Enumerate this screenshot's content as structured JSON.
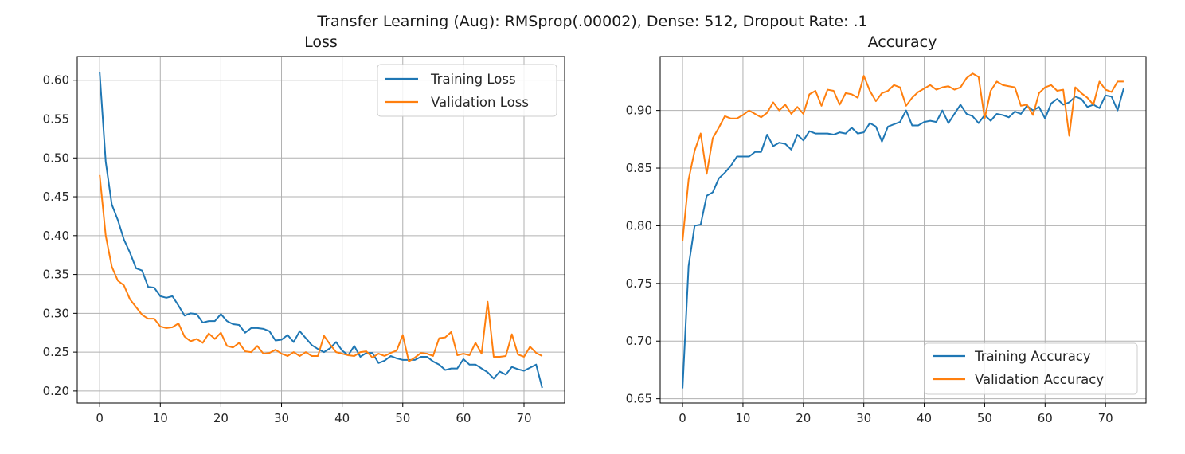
{
  "suptitle": "Transfer Learning (Aug): RMSprop(.00002), Dense: 512, Dropout Rate: .1",
  "colors": {
    "training": "#1f77b4",
    "validation": "#ff7f0e",
    "grid": "#b0b0b0",
    "axes": "#000000"
  },
  "chart_data": [
    {
      "type": "line",
      "title": "Loss",
      "xlabel": "",
      "ylabel": "",
      "xlim": [
        -3.7,
        76.7
      ],
      "ylim": [
        0.1845,
        0.6305
      ],
      "xticks": [
        0,
        10,
        20,
        30,
        40,
        50,
        60,
        70
      ],
      "yticks": [
        0.2,
        0.25,
        0.3,
        0.35,
        0.4,
        0.45,
        0.5,
        0.55,
        0.6
      ],
      "ytick_labels": [
        "0.20",
        "0.25",
        "0.30",
        "0.35",
        "0.40",
        "0.45",
        "0.50",
        "0.55",
        "0.60"
      ],
      "grid": true,
      "legend_position": "upper right",
      "series": [
        {
          "name": "Training Loss",
          "color": "#1f77b4",
          "values": [
            0.61,
            0.495,
            0.44,
            0.42,
            0.395,
            0.378,
            0.358,
            0.355,
            0.334,
            0.333,
            0.322,
            0.32,
            0.322,
            0.31,
            0.297,
            0.3,
            0.299,
            0.288,
            0.29,
            0.29,
            0.299,
            0.29,
            0.286,
            0.285,
            0.275,
            0.281,
            0.281,
            0.28,
            0.277,
            0.265,
            0.266,
            0.272,
            0.263,
            0.277,
            0.268,
            0.259,
            0.254,
            0.25,
            0.255,
            0.263,
            0.252,
            0.246,
            0.258,
            0.244,
            0.249,
            0.249,
            0.236,
            0.239,
            0.245,
            0.242,
            0.24,
            0.24,
            0.24,
            0.244,
            0.244,
            0.238,
            0.234,
            0.227,
            0.229,
            0.229,
            0.241,
            0.234,
            0.234,
            0.229,
            0.224,
            0.216,
            0.225,
            0.221,
            0.231,
            0.228,
            0.226,
            0.23,
            0.234,
            0.204
          ]
        },
        {
          "name": "Validation Loss",
          "color": "#ff7f0e",
          "values": [
            0.478,
            0.4,
            0.36,
            0.342,
            0.336,
            0.318,
            0.308,
            0.298,
            0.293,
            0.293,
            0.283,
            0.281,
            0.282,
            0.287,
            0.27,
            0.264,
            0.267,
            0.262,
            0.274,
            0.267,
            0.275,
            0.258,
            0.256,
            0.262,
            0.251,
            0.25,
            0.258,
            0.248,
            0.249,
            0.253,
            0.248,
            0.245,
            0.25,
            0.245,
            0.25,
            0.245,
            0.245,
            0.271,
            0.26,
            0.25,
            0.248,
            0.246,
            0.245,
            0.25,
            0.251,
            0.243,
            0.248,
            0.245,
            0.249,
            0.252,
            0.272,
            0.238,
            0.243,
            0.249,
            0.248,
            0.245,
            0.268,
            0.269,
            0.276,
            0.246,
            0.248,
            0.246,
            0.262,
            0.248,
            0.315,
            0.244,
            0.244,
            0.245,
            0.273,
            0.247,
            0.244,
            0.257,
            0.249,
            0.245
          ]
        }
      ]
    },
    {
      "type": "line",
      "title": "Accuracy",
      "xlabel": "",
      "ylabel": "",
      "xlim": [
        -3.7,
        76.7
      ],
      "ylim": [
        0.6463,
        0.9467
      ],
      "xticks": [
        0,
        10,
        20,
        30,
        40,
        50,
        60,
        70
      ],
      "yticks": [
        0.65,
        0.7,
        0.75,
        0.8,
        0.85,
        0.9
      ],
      "ytick_labels": [
        "0.65",
        "0.70",
        "0.75",
        "0.80",
        "0.85",
        "0.90"
      ],
      "grid": true,
      "legend_position": "lower right",
      "series": [
        {
          "name": "Training Accuracy",
          "color": "#1f77b4",
          "values": [
            0.659,
            0.765,
            0.8,
            0.801,
            0.826,
            0.829,
            0.841,
            0.846,
            0.852,
            0.86,
            0.86,
            0.86,
            0.864,
            0.864,
            0.879,
            0.869,
            0.872,
            0.871,
            0.866,
            0.879,
            0.874,
            0.882,
            0.88,
            0.88,
            0.88,
            0.879,
            0.881,
            0.88,
            0.885,
            0.88,
            0.881,
            0.889,
            0.886,
            0.873,
            0.886,
            0.888,
            0.89,
            0.9,
            0.887,
            0.887,
            0.89,
            0.891,
            0.89,
            0.9,
            0.889,
            0.897,
            0.905,
            0.897,
            0.895,
            0.889,
            0.896,
            0.891,
            0.897,
            0.896,
            0.894,
            0.899,
            0.897,
            0.904,
            0.9,
            0.903,
            0.893,
            0.906,
            0.91,
            0.905,
            0.907,
            0.912,
            0.91,
            0.903,
            0.905,
            0.902,
            0.913,
            0.912,
            0.9,
            0.919
          ]
        },
        {
          "name": "Validation Accuracy",
          "color": "#ff7f0e",
          "values": [
            0.787,
            0.84,
            0.865,
            0.88,
            0.845,
            0.876,
            0.885,
            0.895,
            0.893,
            0.893,
            0.896,
            0.9,
            0.897,
            0.894,
            0.898,
            0.907,
            0.9,
            0.905,
            0.897,
            0.903,
            0.897,
            0.914,
            0.917,
            0.904,
            0.918,
            0.917,
            0.905,
            0.915,
            0.914,
            0.911,
            0.93,
            0.917,
            0.908,
            0.915,
            0.917,
            0.922,
            0.92,
            0.904,
            0.911,
            0.916,
            0.919,
            0.922,
            0.918,
            0.92,
            0.921,
            0.918,
            0.92,
            0.928,
            0.932,
            0.929,
            0.893,
            0.917,
            0.925,
            0.922,
            0.921,
            0.92,
            0.904,
            0.905,
            0.896,
            0.915,
            0.92,
            0.922,
            0.917,
            0.918,
            0.878,
            0.92,
            0.915,
            0.911,
            0.905,
            0.925,
            0.918,
            0.916,
            0.925,
            0.925
          ]
        }
      ]
    }
  ]
}
